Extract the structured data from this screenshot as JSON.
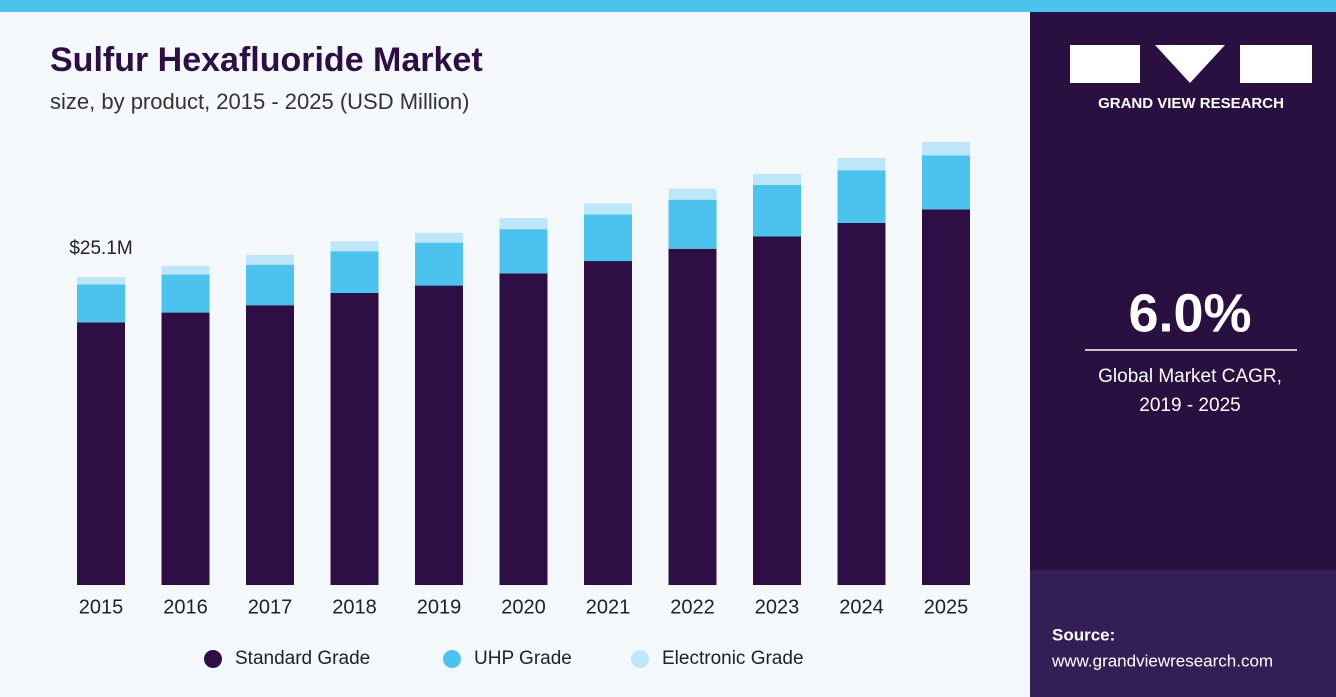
{
  "chart_data": {
    "type": "stacked_bar",
    "title": "Sulfur Hexafluoride Market",
    "subtitle": "size, by product, 2015 - 2025 (USD Million)",
    "annotation": "$25.1M",
    "categories": [
      "2015",
      "2016",
      "2017",
      "2018",
      "2019",
      "2020",
      "2021",
      "2022",
      "2023",
      "2024",
      "2025"
    ],
    "series": [
      {
        "name": "Standard Grade",
        "color": "#2d0f45",
        "values": [
          21.4,
          22.2,
          22.8,
          23.8,
          24.4,
          25.4,
          26.4,
          27.4,
          28.4,
          29.5,
          30.6
        ]
      },
      {
        "name": "UHP Grade",
        "color": "#4cc3ee",
        "values": [
          3.1,
          3.1,
          3.3,
          3.4,
          3.5,
          3.6,
          3.8,
          4.0,
          4.2,
          4.3,
          4.4
        ]
      },
      {
        "name": "Electronic Grade",
        "color": "#bde7f9",
        "values": [
          0.6,
          0.7,
          0.8,
          0.8,
          0.8,
          0.9,
          0.9,
          0.9,
          0.9,
          1.0,
          1.1
        ]
      }
    ]
  },
  "sidebar": {
    "brand": "GRAND VIEW RESEARCH",
    "cagr": "6.0%",
    "cagr_label_1": "Global Market CAGR,",
    "cagr_label_2": "2019 - 2025",
    "source_label": "Source:",
    "source_url": "www.grandviewresearch.com"
  }
}
